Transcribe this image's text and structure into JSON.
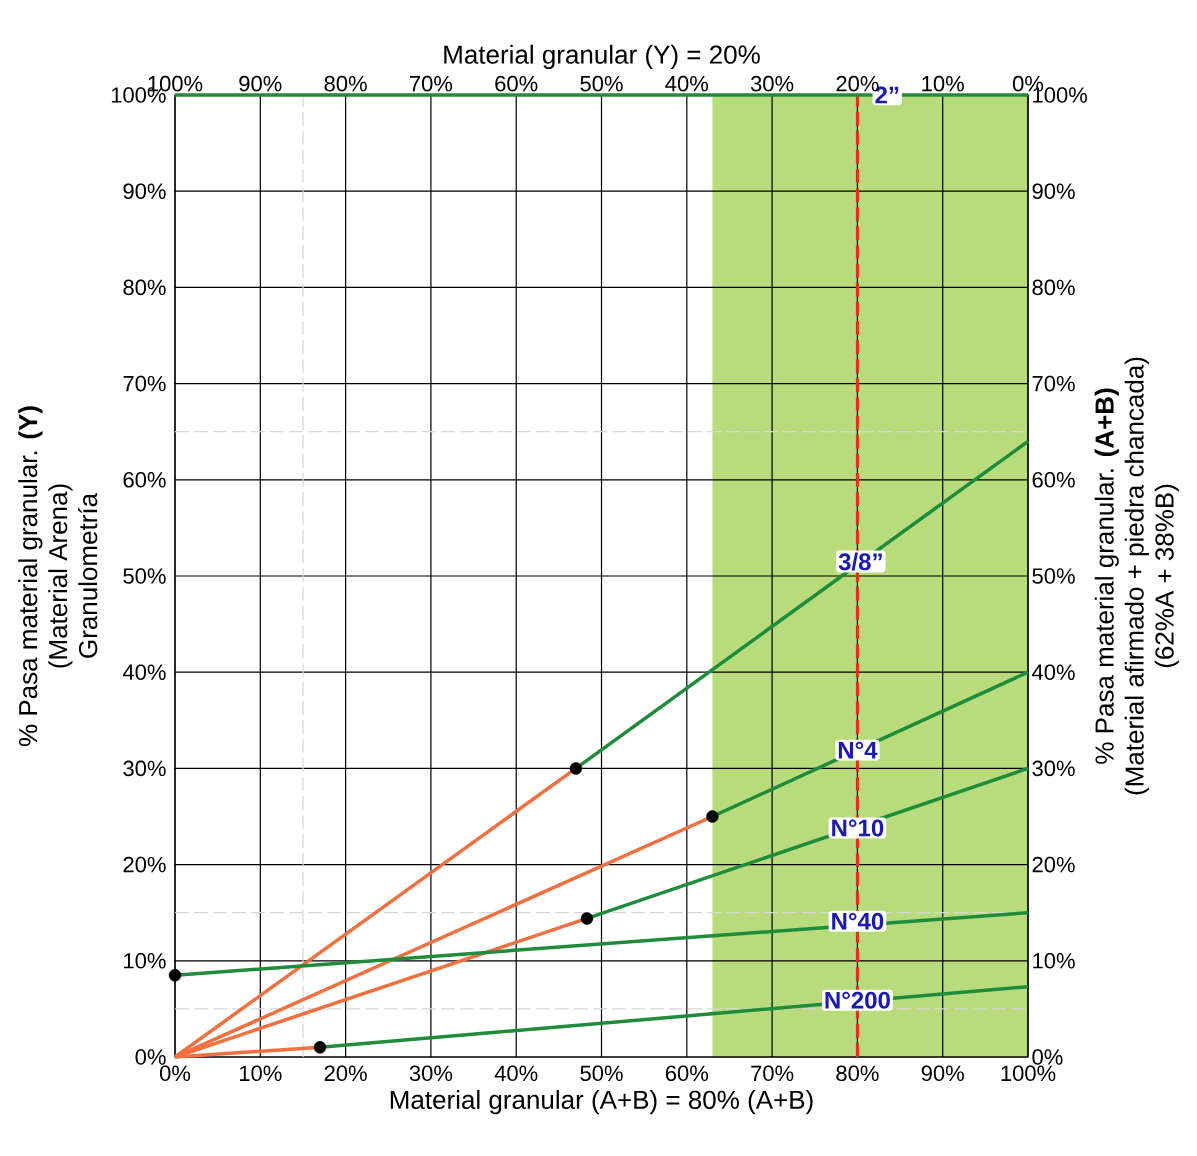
{
  "chart_data": {
    "type": "line",
    "xlabel": "Material granular (A+B) = 80% (A+B)",
    "x2label": "Material granular (Y) = 20%",
    "ylabel": "% Pasa material granular. **(Y)**",
    "y2label": "% Pasa material granular. **(A+B)**",
    "xlim": [
      0,
      100
    ],
    "xticks": [
      {
        "value": 0,
        "label": "0%"
      },
      {
        "value": 10,
        "label": "10%"
      },
      {
        "value": 20,
        "label": "20%"
      },
      {
        "value": 30,
        "label": "30%"
      },
      {
        "value": 40,
        "label": "40%"
      },
      {
        "value": 50,
        "label": "50%"
      },
      {
        "value": 60,
        "label": "60%"
      },
      {
        "value": 70,
        "label": "70%"
      },
      {
        "value": 80,
        "label": "80%"
      },
      {
        "value": 90,
        "label": "90%"
      },
      {
        "value": 100,
        "label": "100%"
      }
    ],
    "x2lim": [
      100,
      0
    ],
    "x2ticks": [
      {
        "value": 100,
        "label": "100%"
      },
      {
        "value": 90,
        "label": "90%"
      },
      {
        "value": 80,
        "label": "80%"
      },
      {
        "value": 70,
        "label": "70%"
      },
      {
        "value": 60,
        "label": "60%"
      },
      {
        "value": 50,
        "label": "50%"
      },
      {
        "value": 40,
        "label": "40%"
      },
      {
        "value": 30,
        "label": "30%"
      },
      {
        "value": 20,
        "label": "20%"
      },
      {
        "value": 10,
        "label": "10%"
      },
      {
        "value": 0,
        "label": "0%"
      }
    ],
    "ylim": [
      0,
      100
    ],
    "yticks": [
      {
        "value": 0,
        "label": "0%"
      },
      {
        "value": 10,
        "label": "10%"
      },
      {
        "value": 20,
        "label": "20%"
      },
      {
        "value": 30,
        "label": "30%"
      },
      {
        "value": 40,
        "label": "40%"
      },
      {
        "value": 50,
        "label": "50%"
      },
      {
        "value": 60,
        "label": "60%"
      },
      {
        "value": 70,
        "label": "70%"
      },
      {
        "value": 80,
        "label": "80%"
      },
      {
        "value": 90,
        "label": "90%"
      },
      {
        "value": 100,
        "label": "100%"
      }
    ],
    "y2lim": [
      0,
      100
    ],
    "y2ticks": [
      {
        "value": 0,
        "label": "0%"
      },
      {
        "value": 10,
        "label": "10%"
      },
      {
        "value": 20,
        "label": "20%"
      },
      {
        "value": 30,
        "label": "30%"
      },
      {
        "value": 40,
        "label": "40%"
      },
      {
        "value": 50,
        "label": "50%"
      },
      {
        "value": 60,
        "label": "60%"
      },
      {
        "value": 70,
        "label": "70%"
      },
      {
        "value": 80,
        "label": "80%"
      },
      {
        "value": 90,
        "label": "90%"
      },
      {
        "value": 100,
        "label": "100%"
      }
    ],
    "grid": true,
    "series": [
      {
        "color": "#1e8c3a",
        "x": [
          0,
          100
        ],
        "values": [
          100,
          100
        ]
      },
      {
        "color": "#f07040",
        "x": [
          0,
          47
        ],
        "values": [
          0,
          30
        ]
      },
      {
        "color": "#1e8c3a",
        "x": [
          47,
          100
        ],
        "values": [
          30,
          64
        ]
      },
      {
        "color": "#f07040",
        "x": [
          0,
          63
        ],
        "values": [
          0,
          25
        ]
      },
      {
        "color": "#1e8c3a",
        "x": [
          63,
          100
        ],
        "values": [
          25,
          40
        ]
      },
      {
        "color": "#f07040",
        "x": [
          0,
          48.3
        ],
        "values": [
          0,
          14.4
        ]
      },
      {
        "color": "#1e8c3a",
        "x": [
          48.3,
          100
        ],
        "values": [
          14.4,
          30
        ]
      },
      {
        "color": "#1e8c3a",
        "x": [
          0,
          100
        ],
        "values": [
          8.5,
          15
        ]
      },
      {
        "color": "#f07040",
        "x": [
          0,
          17
        ],
        "values": [
          0,
          1
        ]
      },
      {
        "color": "#1e8c3a",
        "x": [
          17,
          100
        ],
        "values": [
          1,
          7.3
        ]
      },
      {
        "type": "scatter",
        "color": "#000000",
        "marker": "circle",
        "x": [
          47,
          63,
          48.3,
          0,
          17
        ],
        "values": [
          30,
          25,
          14.4,
          8.5,
          1
        ]
      }
    ],
    "bands": [
      {
        "axis": "x",
        "from": 63,
        "to": 100,
        "color": "#b8dc7c"
      }
    ],
    "ref_lines": [
      {
        "axis": "x",
        "value": 15,
        "color": "#d8d8d8",
        "line_style": "dashed"
      },
      {
        "axis": "y",
        "value": 65,
        "color": "#d8d8d8",
        "line_style": "dashed"
      },
      {
        "axis": "y",
        "value": 15,
        "color": "#d8d8d8",
        "line_style": "dashed"
      },
      {
        "axis": "y",
        "value": 5,
        "color": "#d8d8d8",
        "line_style": "dashed"
      },
      {
        "axis": "x",
        "value": 80,
        "color": "#e03020",
        "line_style": "dashed"
      }
    ],
    "annotations": [
      "(Material Arena)",
      "Granulometría",
      "(Material afirmado + piedra chancada)",
      "(62%A + 38%B)",
      {
        "text": "2”",
        "x": 83.5,
        "y": 100
      },
      {
        "text": "3/8”",
        "x": 80.4,
        "y": 51.5
      },
      {
        "text": "N°4",
        "x": 80,
        "y": 31.9
      },
      {
        "text": "N°10",
        "x": 80,
        "y": 23.8
      },
      {
        "text": "N°40",
        "x": 80,
        "y": 14.1
      },
      {
        "text": "N°200",
        "x": 80,
        "y": 5.9
      }
    ]
  }
}
